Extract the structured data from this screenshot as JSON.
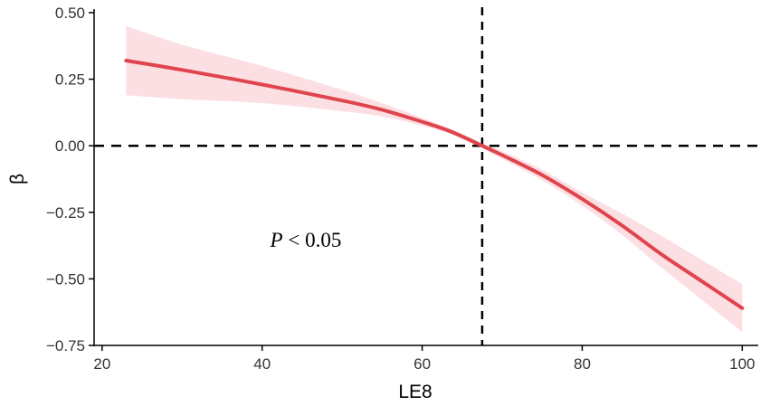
{
  "chart_data": {
    "type": "line",
    "title": "",
    "xlabel": "LE8",
    "ylabel": "β",
    "xlim": [
      19,
      102
    ],
    "ylim": [
      -0.75,
      0.5
    ],
    "x_ticks": [
      20,
      40,
      60,
      80,
      100
    ],
    "y_ticks": [
      0.5,
      0.25,
      0.0,
      -0.25,
      -0.5,
      -0.75
    ],
    "x_tick_labels": [
      "20",
      "40",
      "60",
      "80",
      "100"
    ],
    "y_tick_labels": [
      "0.50",
      "0.25",
      "0.00",
      "−0.25",
      "−0.50",
      "−0.75"
    ],
    "grid": false,
    "legend": "none",
    "reference_lines": {
      "horizontal_y": 0,
      "vertical_x": 67.5
    },
    "annotation": {
      "italic_part": "P",
      "rest": " < 0.05",
      "x": 41,
      "y": -0.38
    },
    "series": [
      {
        "x": [
          23,
          30,
          40,
          50,
          55,
          60,
          63,
          65,
          67.5,
          70,
          75,
          80,
          85,
          90,
          95,
          100
        ],
        "values": [
          0.32,
          0.285,
          0.23,
          0.17,
          0.135,
          0.09,
          0.06,
          0.035,
          0.0,
          -0.035,
          -0.11,
          -0.2,
          -0.3,
          -0.41,
          -0.51,
          -0.61
        ],
        "upper": [
          0.45,
          0.38,
          0.3,
          0.21,
          0.16,
          0.105,
          0.07,
          0.045,
          0.01,
          -0.02,
          -0.09,
          -0.175,
          -0.255,
          -0.34,
          -0.43,
          -0.52
        ],
        "lower": [
          0.19,
          0.175,
          0.16,
          0.13,
          0.11,
          0.075,
          0.05,
          0.025,
          -0.01,
          -0.05,
          -0.13,
          -0.225,
          -0.335,
          -0.46,
          -0.58,
          -0.7
        ]
      }
    ],
    "colors": {
      "line": "#e0454d",
      "band": "#fcdfe3",
      "axis": "#000000",
      "reference": "#000000"
    }
  }
}
